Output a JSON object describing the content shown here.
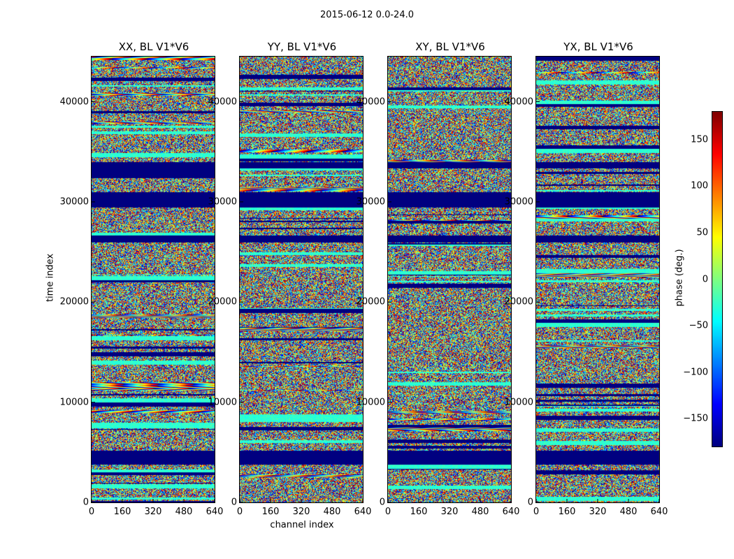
{
  "figure": {
    "suptitle": "2015-06-12 0.0-24.0",
    "colormap": "jet",
    "xlabel": "channel index",
    "ylabel": "time index",
    "colorbar": {
      "label": "phase (deg.)",
      "ticks": [
        -150,
        -100,
        -50,
        0,
        50,
        100,
        150
      ],
      "tick_labels": [
        "−150",
        "−100",
        "−50",
        "0",
        "50",
        "100",
        "150"
      ],
      "range": [
        -180,
        180
      ]
    }
  },
  "chart_data": [
    {
      "type": "heatmap",
      "title": "XX, BL V1*V6",
      "xlabel": "channel index",
      "ylabel": "time index",
      "xlim": [
        0,
        640
      ],
      "ylim": [
        0,
        44500
      ],
      "xticks": [
        0,
        160,
        320,
        480,
        640
      ],
      "yticks": [
        0,
        10000,
        20000,
        30000,
        40000
      ],
      "value_range": [
        -180,
        180
      ],
      "flagged_bands": [
        [
          3800,
          5200
        ],
        [
          29500,
          31000
        ],
        [
          33400,
          34000
        ],
        [
          26000,
          26700
        ]
      ]
    },
    {
      "type": "heatmap",
      "title": "YY, BL V1*V6",
      "xlabel": "channel index",
      "ylabel": "time index",
      "xlim": [
        0,
        640
      ],
      "ylim": [
        0,
        44500
      ],
      "xticks": [
        0,
        160,
        320,
        480,
        640
      ],
      "yticks": [
        0,
        10000,
        20000,
        30000,
        40000
      ],
      "value_range": [
        -180,
        180
      ],
      "flagged_bands": [
        [
          3800,
          5200
        ],
        [
          29500,
          31000
        ],
        [
          33400,
          34000
        ],
        [
          26000,
          26700
        ],
        [
          7200,
          7600
        ]
      ]
    },
    {
      "type": "heatmap",
      "title": "XY, BL V1*V6",
      "xlabel": "channel index",
      "ylabel": "time index",
      "xlim": [
        0,
        640
      ],
      "ylim": [
        0,
        44500
      ],
      "xticks": [
        0,
        160,
        320,
        480,
        640
      ],
      "yticks": [
        0,
        10000,
        20000,
        30000,
        40000
      ],
      "value_range": [
        -180,
        180
      ],
      "flagged_bands": [
        [
          3800,
          5200
        ],
        [
          29500,
          31000
        ],
        [
          33400,
          34000
        ],
        [
          26000,
          26700
        ]
      ]
    },
    {
      "type": "heatmap",
      "title": "YX, BL V1*V6",
      "xlabel": "channel index",
      "ylabel": "time index",
      "xlim": [
        0,
        640
      ],
      "ylim": [
        0,
        44500
      ],
      "xticks": [
        0,
        160,
        320,
        480,
        640
      ],
      "yticks": [
        0,
        10000,
        20000,
        30000,
        40000
      ],
      "value_range": [
        -180,
        180
      ],
      "flagged_bands": [
        [
          3800,
          5200
        ],
        [
          29500,
          31000
        ],
        [
          33400,
          34000
        ],
        [
          26000,
          26700
        ]
      ]
    }
  ]
}
